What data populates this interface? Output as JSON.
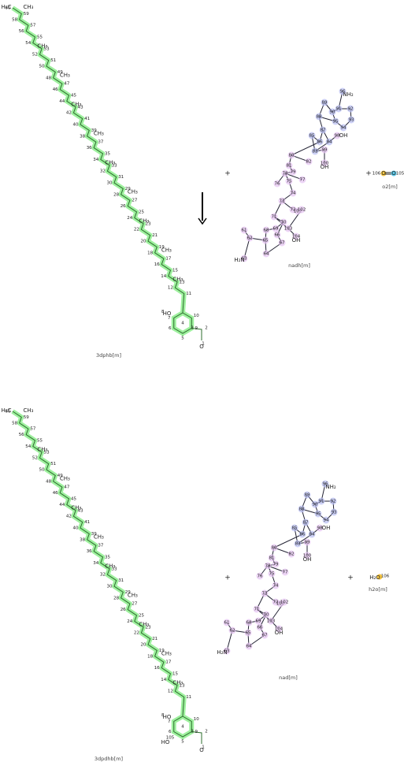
{
  "plus": "+",
  "reactants": [
    {
      "name": "3dphb[m]",
      "atoms": [
        "60",
        "59",
        "58",
        "57",
        "56",
        "55",
        "54",
        "53",
        "52",
        "51",
        "50",
        "49",
        "48",
        "47",
        "46",
        "45",
        "44",
        "43",
        "42",
        "41",
        "40",
        "39",
        "38",
        "37",
        "36",
        "35",
        "34",
        "33",
        "32",
        "31",
        "30",
        "29",
        "28",
        "27",
        "26",
        "25",
        "24",
        "23",
        "22",
        "21",
        "20",
        "19",
        "18",
        "17",
        "16",
        "15",
        "14",
        "13",
        "12",
        "11",
        "10",
        "9",
        "8",
        "7",
        "6",
        "5",
        "4",
        "3",
        "2",
        "1"
      ],
      "groups": [
        "CH₃",
        "H₃C",
        "CH₃",
        "CH₃",
        "CH₃",
        "CH₃",
        "CH₃",
        "CH₃",
        "CH₃",
        "CH₃",
        "CH₃",
        "HO",
        "O"
      ]
    },
    {
      "name": "nadh[m]",
      "atoms": [
        "96",
        "89",
        "88",
        "90",
        "91",
        "92",
        "93",
        "94",
        "95",
        "87",
        "86",
        "85",
        "84",
        "83",
        "98",
        "99",
        "100",
        "80",
        "81",
        "82",
        "79",
        "78",
        "77",
        "76",
        "75",
        "74",
        "73",
        "72",
        "71",
        "70",
        "69",
        "68",
        "67",
        "66",
        "65",
        "64",
        "62",
        "61",
        "63",
        "101",
        "102",
        "103",
        "104"
      ],
      "groups": [
        "NH₂",
        "OH",
        "OH",
        "H₂N",
        "OH"
      ]
    },
    {
      "name": "o2[m]",
      "atoms": [
        "106",
        "105"
      ],
      "groups": [
        "O",
        "O"
      ]
    }
  ],
  "products": [
    {
      "name": "3dpdhb[m]",
      "atoms": [
        "60",
        "59",
        "58",
        "57",
        "56",
        "55",
        "54",
        "53",
        "52",
        "51",
        "50",
        "49",
        "48",
        "47",
        "46",
        "45",
        "44",
        "43",
        "42",
        "41",
        "40",
        "39",
        "38",
        "37",
        "36",
        "35",
        "34",
        "33",
        "32",
        "31",
        "30",
        "29",
        "28",
        "27",
        "26",
        "25",
        "24",
        "23",
        "22",
        "21",
        "20",
        "19",
        "18",
        "17",
        "16",
        "15",
        "14",
        "13",
        "12",
        "11",
        "10",
        "9",
        "8",
        "7",
        "6",
        "5",
        "4",
        "3",
        "2",
        "1",
        "105"
      ],
      "groups": [
        "CH₃",
        "H₃C",
        "CH₃",
        "CH₃",
        "CH₃",
        "CH₃",
        "CH₃",
        "CH₃",
        "CH₃",
        "CH₃",
        "CH₃",
        "HO",
        "O",
        "HO"
      ]
    },
    {
      "name": "nad[m]",
      "atoms": [
        "96",
        "89",
        "88",
        "90",
        "91",
        "92",
        "93",
        "94",
        "95",
        "87",
        "86",
        "85",
        "84",
        "83",
        "98",
        "99",
        "100",
        "80",
        "81",
        "82",
        "79",
        "78",
        "77",
        "76",
        "75",
        "74",
        "73",
        "72",
        "71",
        "70",
        "69",
        "68",
        "67",
        "66",
        "65",
        "64",
        "62",
        "61",
        "63",
        "101",
        "102",
        "103",
        "104"
      ],
      "groups": [
        "NH₂",
        "OH",
        "OH",
        "H₂N",
        "OH"
      ]
    },
    {
      "name": "h2o[m]",
      "atoms": [
        "106"
      ],
      "groups": [
        "H₂O"
      ]
    }
  ]
}
